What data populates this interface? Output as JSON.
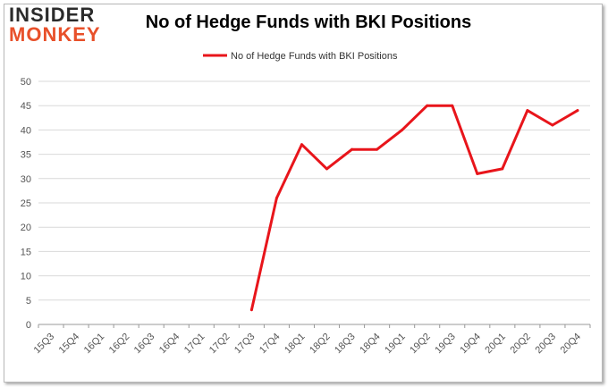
{
  "logo": {
    "word1": "INSIDER",
    "word2": "MONKEY"
  },
  "colors": {
    "line": "#e8151b",
    "grid": "#d9d9d9",
    "accent": "#e8502a"
  },
  "chart_data": {
    "type": "line",
    "title": "No of Hedge Funds with BKI Positions",
    "xlabel": "",
    "ylabel": "",
    "ylim": [
      0,
      50
    ],
    "yticks": [
      0,
      5,
      10,
      15,
      20,
      25,
      30,
      35,
      40,
      45,
      50
    ],
    "grid": true,
    "legend": "top-center",
    "categories": [
      "15Q3",
      "15Q4",
      "16Q1",
      "16Q2",
      "16Q3",
      "16Q4",
      "17Q1",
      "17Q2",
      "17Q3",
      "17Q4",
      "18Q1",
      "18Q2",
      "18Q3",
      "18Q4",
      "19Q1",
      "19Q2",
      "19Q3",
      "19Q4",
      "20Q1",
      "20Q2",
      "20Q3",
      "20Q4"
    ],
    "series": [
      {
        "name": "No of Hedge Funds with BKI Positions",
        "values": [
          null,
          null,
          null,
          null,
          null,
          null,
          null,
          null,
          3,
          26,
          37,
          32,
          36,
          36,
          40,
          45,
          45,
          31,
          32,
          44,
          41,
          44
        ]
      }
    ]
  }
}
